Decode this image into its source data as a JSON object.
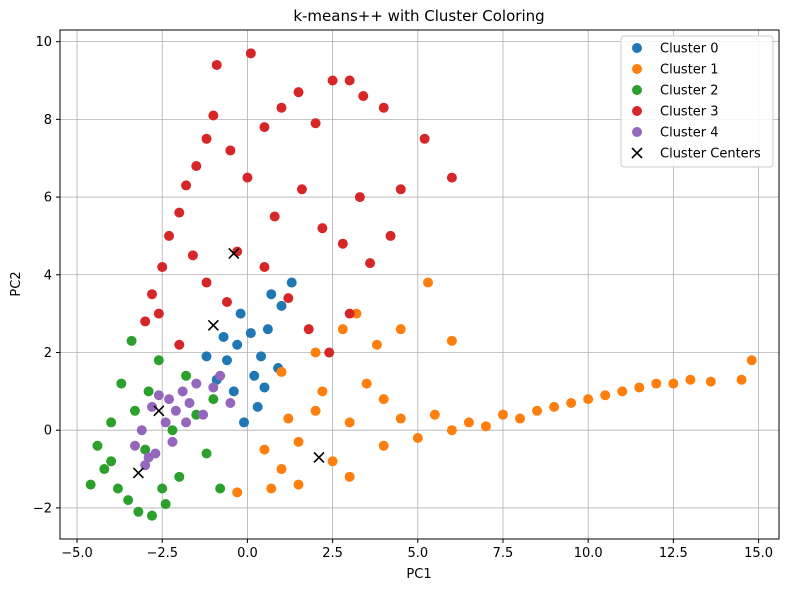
{
  "chart_data": {
    "type": "scatter",
    "title": "k-means++ with Cluster Coloring",
    "xlabel": "PC1",
    "ylabel": "PC2",
    "xlim": [
      -5.5,
      15.6
    ],
    "ylim": [
      -2.8,
      10.3
    ],
    "xticks": [
      -5.0,
      -2.5,
      0.0,
      2.5,
      5.0,
      7.5,
      10.0,
      12.5,
      15.0
    ],
    "xtick_labels": [
      "−5.0",
      "−2.5",
      "0.0",
      "2.5",
      "5.0",
      "7.5",
      "10.0",
      "12.5",
      "15.0"
    ],
    "yticks": [
      -2,
      0,
      2,
      4,
      6,
      8,
      10
    ],
    "ytick_labels": [
      "−2",
      "0",
      "2",
      "4",
      "6",
      "8",
      "10"
    ],
    "grid": true,
    "legend_position": "top-right",
    "series": [
      {
        "name": "Cluster 0",
        "color": "#1f77b4",
        "points": [
          [
            -0.6,
            1.8
          ],
          [
            -0.3,
            2.2
          ],
          [
            0.1,
            2.5
          ],
          [
            0.4,
            1.9
          ],
          [
            -0.9,
            1.3
          ],
          [
            -0.4,
            1.0
          ],
          [
            0.2,
            1.4
          ],
          [
            0.6,
            2.6
          ],
          [
            1.0,
            3.2
          ],
          [
            -0.2,
            3.0
          ],
          [
            0.3,
            0.6
          ],
          [
            -0.1,
            0.2
          ],
          [
            0.5,
            1.1
          ],
          [
            0.9,
            1.6
          ],
          [
            1.3,
            3.8
          ],
          [
            0.7,
            3.5
          ],
          [
            -0.7,
            2.4
          ],
          [
            -1.2,
            1.9
          ]
        ]
      },
      {
        "name": "Cluster 1",
        "color": "#ff7f0e",
        "points": [
          [
            0.5,
            -0.5
          ],
          [
            1.0,
            -1.0
          ],
          [
            1.5,
            -0.3
          ],
          [
            2.0,
            0.5
          ],
          [
            2.5,
            -0.8
          ],
          [
            3.0,
            0.2
          ],
          [
            3.5,
            1.2
          ],
          [
            4.0,
            -0.4
          ],
          [
            4.5,
            0.3
          ],
          [
            5.0,
            -0.2
          ],
          [
            5.5,
            0.4
          ],
          [
            6.0,
            0.0
          ],
          [
            6.5,
            0.2
          ],
          [
            7.0,
            0.1
          ],
          [
            7.5,
            0.4
          ],
          [
            8.0,
            0.3
          ],
          [
            8.5,
            0.5
          ],
          [
            9.0,
            0.6
          ],
          [
            9.5,
            0.7
          ],
          [
            10.0,
            0.8
          ],
          [
            10.5,
            0.9
          ],
          [
            11.0,
            1.0
          ],
          [
            11.5,
            1.1
          ],
          [
            12.0,
            1.2
          ],
          [
            12.5,
            1.2
          ],
          [
            13.0,
            1.3
          ],
          [
            13.6,
            1.25
          ],
          [
            14.5,
            1.3
          ],
          [
            14.8,
            1.8
          ],
          [
            1.0,
            1.5
          ],
          [
            2.0,
            2.0
          ],
          [
            2.8,
            2.6
          ],
          [
            3.2,
            3.0
          ],
          [
            3.8,
            2.2
          ],
          [
            4.5,
            2.6
          ],
          [
            5.3,
            3.8
          ],
          [
            6.0,
            2.3
          ],
          [
            1.5,
            -1.4
          ],
          [
            0.7,
            -1.5
          ],
          [
            -0.3,
            -1.6
          ],
          [
            3.0,
            -1.2
          ],
          [
            2.2,
            1.0
          ],
          [
            4.0,
            0.8
          ],
          [
            1.2,
            0.3
          ]
        ]
      },
      {
        "name": "Cluster 2",
        "color": "#2ca02c",
        "points": [
          [
            -4.6,
            -1.4
          ],
          [
            -4.2,
            -1.0
          ],
          [
            -4.0,
            0.2
          ],
          [
            -3.7,
            1.2
          ],
          [
            -3.5,
            -1.8
          ],
          [
            -3.2,
            -2.1
          ],
          [
            -3.0,
            -0.5
          ],
          [
            -2.8,
            -2.2
          ],
          [
            -2.6,
            1.8
          ],
          [
            -2.4,
            -1.9
          ],
          [
            -2.2,
            0.0
          ],
          [
            -2.0,
            -1.2
          ],
          [
            -1.8,
            1.4
          ],
          [
            -1.5,
            0.4
          ],
          [
            -1.2,
            -0.6
          ],
          [
            -1.0,
            0.8
          ],
          [
            -0.8,
            -1.5
          ],
          [
            -3.8,
            -1.5
          ],
          [
            -4.4,
            -0.4
          ],
          [
            -3.4,
            2.3
          ],
          [
            -2.9,
            1.0
          ],
          [
            -3.3,
            0.5
          ],
          [
            -4.0,
            -0.8
          ],
          [
            -2.5,
            -1.5
          ]
        ]
      },
      {
        "name": "Cluster 3",
        "color": "#d62728",
        "points": [
          [
            -3.0,
            2.8
          ],
          [
            -2.8,
            3.5
          ],
          [
            -2.5,
            4.2
          ],
          [
            -2.3,
            5.0
          ],
          [
            -2.0,
            5.6
          ],
          [
            -1.8,
            6.3
          ],
          [
            -1.5,
            6.8
          ],
          [
            -1.2,
            7.5
          ],
          [
            -1.0,
            8.1
          ],
          [
            -0.9,
            9.4
          ],
          [
            0.1,
            9.7
          ],
          [
            -0.5,
            7.2
          ],
          [
            0.0,
            6.5
          ],
          [
            0.5,
            7.8
          ],
          [
            1.0,
            8.3
          ],
          [
            1.5,
            8.7
          ],
          [
            2.0,
            7.9
          ],
          [
            2.5,
            9.0
          ],
          [
            3.0,
            9.0
          ],
          [
            3.4,
            8.6
          ],
          [
            4.0,
            8.3
          ],
          [
            4.5,
            6.2
          ],
          [
            5.2,
            7.5
          ],
          [
            6.0,
            6.5
          ],
          [
            4.2,
            5.0
          ],
          [
            3.6,
            4.3
          ],
          [
            3.0,
            3.0
          ],
          [
            2.4,
            2.0
          ],
          [
            1.8,
            2.6
          ],
          [
            1.2,
            3.4
          ],
          [
            0.5,
            4.2
          ],
          [
            -0.3,
            4.6
          ],
          [
            -1.2,
            3.8
          ],
          [
            -2.0,
            2.2
          ],
          [
            -0.6,
            3.3
          ],
          [
            0.8,
            5.5
          ],
          [
            2.2,
            5.2
          ],
          [
            3.3,
            6.0
          ],
          [
            -2.6,
            3.0
          ],
          [
            -1.6,
            4.5
          ],
          [
            1.6,
            6.2
          ],
          [
            2.8,
            4.8
          ]
        ]
      },
      {
        "name": "Cluster 4",
        "color": "#9467bd",
        "points": [
          [
            -3.3,
            -0.4
          ],
          [
            -3.1,
            0.0
          ],
          [
            -2.9,
            -0.7
          ],
          [
            -2.8,
            0.6
          ],
          [
            -2.6,
            0.9
          ],
          [
            -2.4,
            0.2
          ],
          [
            -2.2,
            -0.3
          ],
          [
            -2.1,
            0.5
          ],
          [
            -1.9,
            1.0
          ],
          [
            -1.7,
            0.7
          ],
          [
            -1.5,
            1.2
          ],
          [
            -1.3,
            0.4
          ],
          [
            -1.0,
            1.1
          ],
          [
            -0.8,
            1.4
          ],
          [
            -0.5,
            0.7
          ],
          [
            -3.0,
            -0.9
          ],
          [
            -2.7,
            -0.6
          ],
          [
            -2.3,
            0.8
          ],
          [
            -1.8,
            0.2
          ]
        ]
      },
      {
        "name": "Cluster Centers",
        "color": "#000000",
        "marker": "x",
        "points": [
          [
            -0.4,
            4.55
          ],
          [
            -1.0,
            2.7
          ],
          [
            2.1,
            -0.7
          ],
          [
            -2.6,
            0.5
          ],
          [
            -3.2,
            -1.1
          ]
        ]
      }
    ]
  }
}
